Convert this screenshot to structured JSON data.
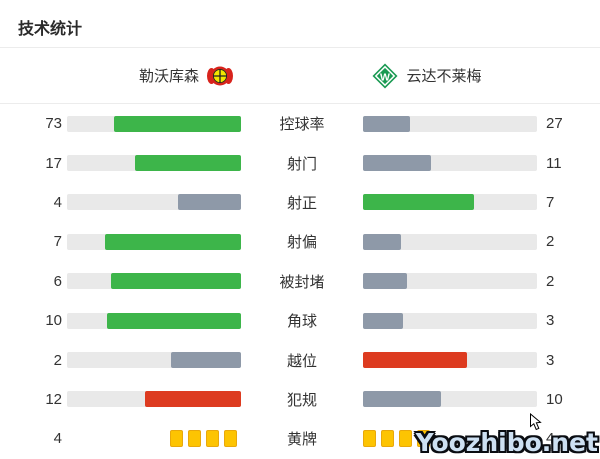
{
  "page": {
    "title": "技术统计",
    "watermark": "Yoozhibo.net"
  },
  "teams": {
    "home": {
      "name": "勒沃库森",
      "logo": "bayer-leverkusen-crest"
    },
    "away": {
      "name": "云达不莱梅",
      "logo": "werder-bremen-crest"
    }
  },
  "colors": {
    "win_green": "#3db54a",
    "neutral_gray": "#8e99a8",
    "negative_red": "#dd3b20",
    "bar_track": "#e9e9e9",
    "card_yellow": "#fdc402",
    "card_border": "#e9a80b"
  },
  "stats": [
    {
      "type": "bar",
      "label": "控球率",
      "home": {
        "value": "73",
        "pct": 73,
        "color": "green"
      },
      "away": {
        "value": "27",
        "pct": 27,
        "color": "gray"
      }
    },
    {
      "type": "bar",
      "label": "射门",
      "home": {
        "value": "17",
        "pct": 61,
        "color": "green"
      },
      "away": {
        "value": "11",
        "pct": 39,
        "color": "gray"
      }
    },
    {
      "type": "bar",
      "label": "射正",
      "home": {
        "value": "4",
        "pct": 36,
        "color": "gray"
      },
      "away": {
        "value": "7",
        "pct": 64,
        "color": "green"
      }
    },
    {
      "type": "bar",
      "label": "射偏",
      "home": {
        "value": "7",
        "pct": 78,
        "color": "green"
      },
      "away": {
        "value": "2",
        "pct": 22,
        "color": "gray"
      }
    },
    {
      "type": "bar",
      "label": "被封堵",
      "home": {
        "value": "6",
        "pct": 75,
        "color": "green"
      },
      "away": {
        "value": "2",
        "pct": 25,
        "color": "gray"
      }
    },
    {
      "type": "bar",
      "label": "角球",
      "home": {
        "value": "10",
        "pct": 77,
        "color": "green"
      },
      "away": {
        "value": "3",
        "pct": 23,
        "color": "gray"
      }
    },
    {
      "type": "bar",
      "label": "越位",
      "home": {
        "value": "2",
        "pct": 40,
        "color": "gray"
      },
      "away": {
        "value": "3",
        "pct": 60,
        "color": "red"
      }
    },
    {
      "type": "bar",
      "label": "犯规",
      "home": {
        "value": "12",
        "pct": 55,
        "color": "red"
      },
      "away": {
        "value": "10",
        "pct": 45,
        "color": "gray"
      }
    },
    {
      "type": "cards",
      "label": "黄牌",
      "home": {
        "value": "4",
        "cards": 4
      },
      "away": {
        "value": "4",
        "cards": 4
      }
    }
  ],
  "chart_data": {
    "type": "bar",
    "title": "技术统计",
    "orientation": "horizontal-paired",
    "categories": [
      "控球率",
      "射门",
      "射正",
      "射偏",
      "被封堵",
      "角球",
      "越位",
      "犯规",
      "黄牌"
    ],
    "series": [
      {
        "name": "勒沃库森",
        "values": [
          73,
          17,
          4,
          7,
          6,
          10,
          2,
          12,
          4
        ]
      },
      {
        "name": "云达不莱梅",
        "values": [
          27,
          11,
          7,
          2,
          2,
          3,
          3,
          10,
          4
        ]
      }
    ],
    "legend_position": "top",
    "grid": false,
    "notes": "Each row: bars sized as value share of row total; winner green, loser gray, negative-stat leader red; 黄牌 row rendered as yellow card icons"
  }
}
